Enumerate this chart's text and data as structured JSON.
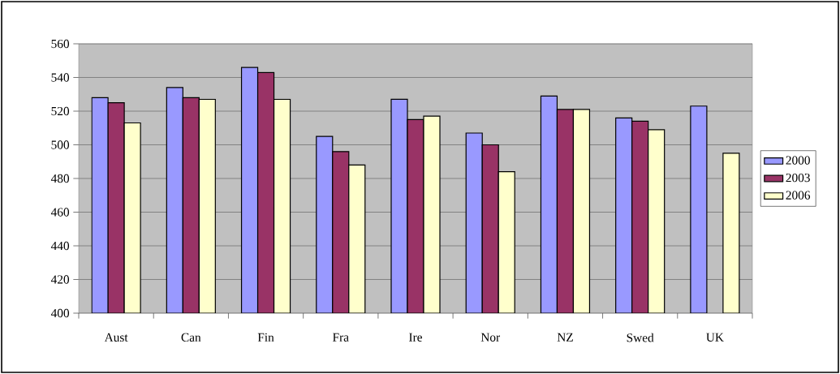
{
  "chart_data": {
    "type": "bar",
    "categories": [
      "Aust",
      "Can",
      "Fin",
      "Fra",
      "Ire",
      "Nor",
      "NZ",
      "Swed",
      "UK"
    ],
    "series": [
      {
        "name": "2000",
        "color": "#9999ff",
        "values": [
          528,
          534,
          546,
          505,
          527,
          507,
          529,
          516,
          523
        ]
      },
      {
        "name": "2003",
        "color": "#993366",
        "values": [
          525,
          528,
          543,
          496,
          515,
          500,
          521,
          514,
          null
        ]
      },
      {
        "name": "2006",
        "color": "#ffffcc",
        "values": [
          513,
          527,
          527,
          488,
          517,
          484,
          521,
          509,
          495
        ]
      }
    ],
    "ylim": [
      400,
      560
    ],
    "yticks": [
      400,
      420,
      440,
      460,
      480,
      500,
      520,
      540,
      560
    ],
    "grid": "y",
    "legend": "right"
  }
}
